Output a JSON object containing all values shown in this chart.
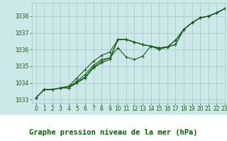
{
  "title": "Graphe pression niveau de la mer (hPa)",
  "background_color": "#cce8e8",
  "grid_color": "#aacccc",
  "line_color": "#1a5c1a",
  "xlim": [
    -0.5,
    23
  ],
  "ylim": [
    1032.8,
    1038.8
  ],
  "yticks": [
    1033,
    1034,
    1035,
    1036,
    1037,
    1038
  ],
  "xticks": [
    0,
    1,
    2,
    3,
    4,
    5,
    6,
    7,
    8,
    9,
    10,
    11,
    12,
    13,
    14,
    15,
    16,
    17,
    18,
    19,
    20,
    21,
    22,
    23
  ],
  "series": [
    [
      1033.1,
      1033.6,
      1033.6,
      1033.7,
      1033.7,
      1034.0,
      1034.3,
      1034.9,
      1035.2,
      1035.4,
      1036.6,
      1036.6,
      1036.45,
      1036.3,
      1036.2,
      1036.1,
      1036.15,
      1036.3,
      1037.2,
      1037.6,
      1037.9,
      1038.0,
      1038.2,
      1038.45
    ],
    [
      1033.1,
      1033.6,
      1033.6,
      1033.7,
      1033.7,
      1034.1,
      1034.5,
      1035.05,
      1035.4,
      1035.5,
      1036.1,
      1035.55,
      1035.4,
      1035.6,
      1036.2,
      1036.0,
      1036.15,
      1036.3,
      1037.2,
      1037.6,
      1037.9,
      1038.0,
      1038.2,
      1038.45
    ],
    [
      1033.1,
      1033.6,
      1033.6,
      1033.7,
      1033.8,
      1034.3,
      1034.8,
      1035.3,
      1035.65,
      1035.85,
      1036.6,
      1036.6,
      1036.45,
      1036.3,
      1036.2,
      1036.1,
      1036.15,
      1036.55,
      1037.2,
      1037.6,
      1037.9,
      1038.0,
      1038.2,
      1038.45
    ],
    [
      1033.1,
      1033.6,
      1033.6,
      1033.7,
      1033.8,
      1034.05,
      1034.35,
      1034.95,
      1035.3,
      1035.5,
      1036.6,
      1036.6,
      1036.45,
      1036.3,
      1036.2,
      1036.1,
      1036.15,
      1036.55,
      1037.2,
      1037.6,
      1037.9,
      1038.0,
      1038.2,
      1038.45
    ]
  ],
  "markersize": 2.5,
  "linewidth": 0.8,
  "tick_fontsize": 5.5,
  "title_fontsize": 7.5,
  "title_color": "#006600",
  "axis_label_color": "#1a5c1a",
  "bottom_bar_color": "#ffffff"
}
